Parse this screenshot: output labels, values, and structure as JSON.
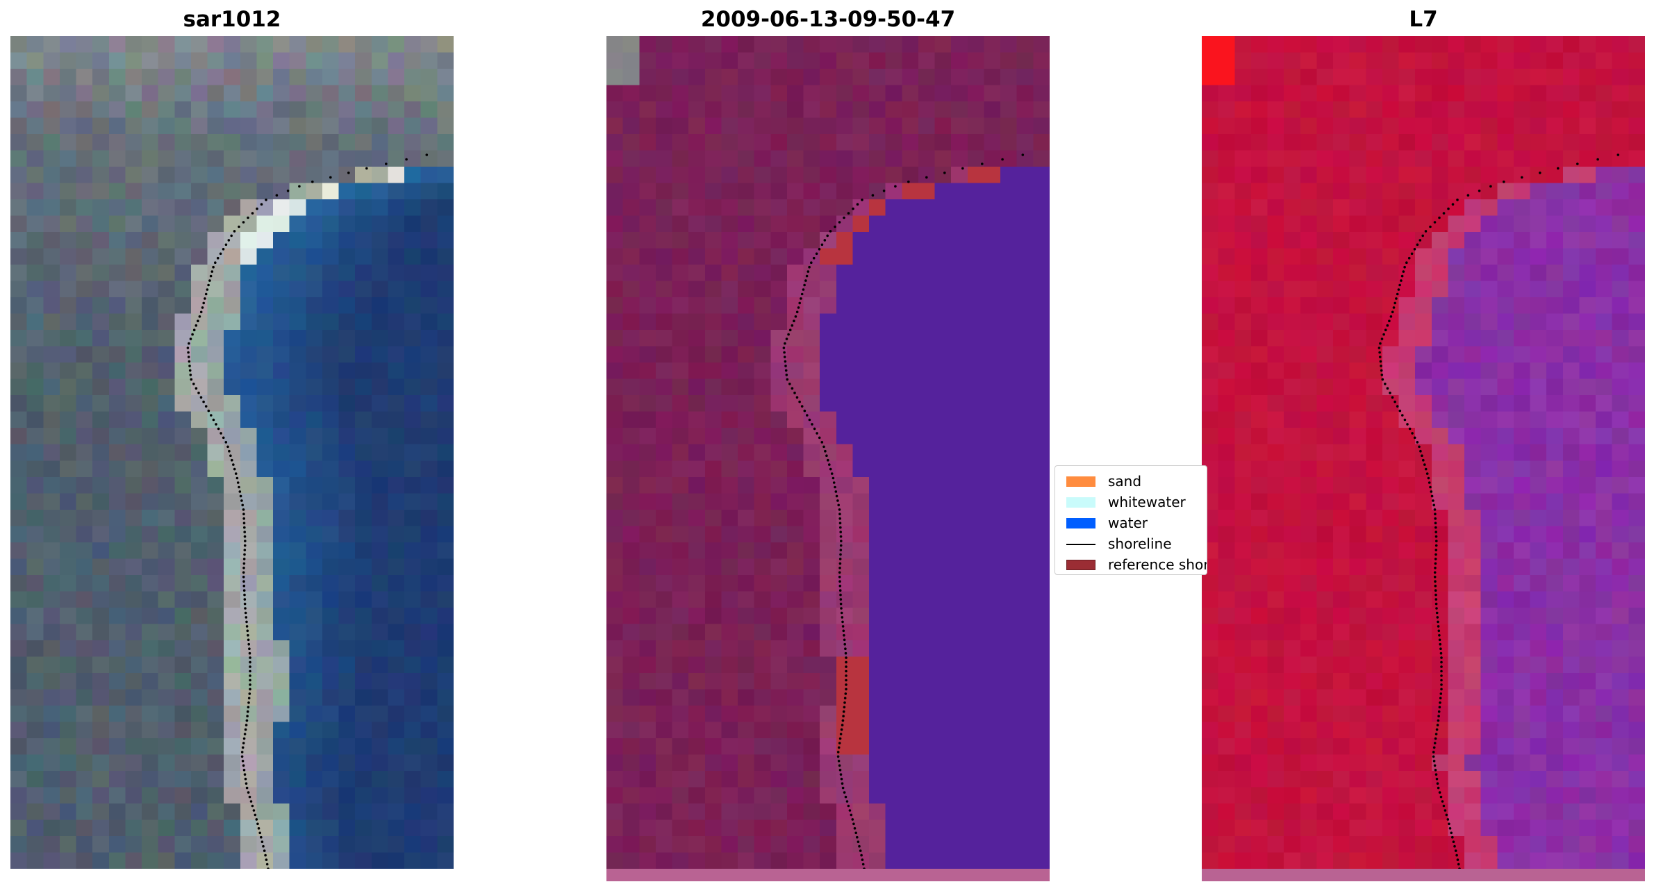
{
  "panels": [
    {
      "title": "sar1012",
      "kind": "rgb"
    },
    {
      "title": "2009-06-13-09-50-47",
      "kind": "classified"
    },
    {
      "title": "L7",
      "kind": "mndwi"
    }
  ],
  "legend": {
    "items": [
      {
        "label": "sand",
        "type": "patch",
        "color": "#ff8c3f"
      },
      {
        "label": "whitewater",
        "type": "patch",
        "color": "#c9fbfb"
      },
      {
        "label": "water",
        "type": "patch",
        "color": "#005eff"
      },
      {
        "label": "shoreline",
        "type": "line",
        "color": "#000000"
      },
      {
        "label": "reference shoreline",
        "type": "patch",
        "color": "#9b2d34"
      }
    ]
  },
  "colors": {
    "water_class": "#55229c",
    "sand_class": "#b8343f",
    "land_false_color": "#7a2157",
    "index_land": "#c4123f",
    "index_water": "#8a2fa6",
    "reference_band": "#b96393",
    "shoreline_dots": "#000000"
  }
}
